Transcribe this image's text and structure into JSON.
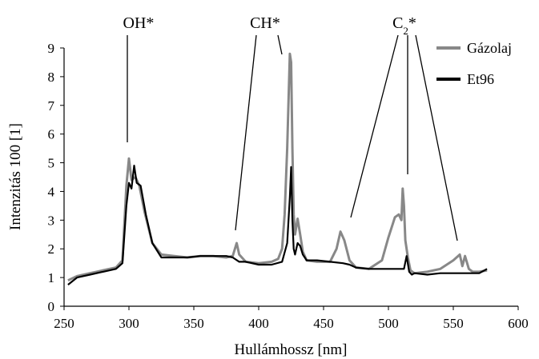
{
  "chart_data": {
    "type": "line",
    "title": "",
    "xlabel": "Hullámhossz [nm]",
    "ylabel": "Intenzitás 100 [1]",
    "xlim": [
      250,
      600
    ],
    "ylim": [
      0,
      9
    ],
    "xticks": [
      250,
      300,
      350,
      400,
      450,
      500,
      550,
      600
    ],
    "yticks": [
      0,
      1,
      2,
      3,
      4,
      5,
      6,
      7,
      8,
      9
    ],
    "grid": false,
    "legend_position": "top-right",
    "annotations": [
      {
        "label": "OH*",
        "sub": "",
        "star": ""
      },
      {
        "label": "CH*",
        "sub": "",
        "star": ""
      },
      {
        "label": "C",
        "sub": "2",
        "star": "*"
      }
    ],
    "series": [
      {
        "name": "Gázolaj",
        "color": "#888888",
        "x": [
          253,
          260,
          270,
          280,
          290,
          295,
          298,
          300,
          302,
          305,
          308,
          312,
          318,
          325,
          335,
          345,
          355,
          365,
          375,
          380,
          383,
          385,
          390,
          400,
          410,
          415,
          418,
          420,
          422,
          423,
          424,
          425,
          426,
          427,
          428,
          430,
          432,
          434,
          437,
          445,
          455,
          460,
          463,
          466,
          470,
          475,
          485,
          495,
          500,
          505,
          508,
          510,
          511,
          512,
          513,
          515,
          517,
          520,
          530,
          540,
          550,
          555,
          557,
          559,
          562,
          565,
          570,
          576
        ],
        "y": [
          0.9,
          1.05,
          1.15,
          1.25,
          1.35,
          1.6,
          4.2,
          5.15,
          4.4,
          4.5,
          4.2,
          3.3,
          2.2,
          1.8,
          1.75,
          1.7,
          1.75,
          1.75,
          1.7,
          1.75,
          2.2,
          1.8,
          1.55,
          1.5,
          1.55,
          1.65,
          2.0,
          3.2,
          5.5,
          7.2,
          8.8,
          8.5,
          5.5,
          3.2,
          2.5,
          3.05,
          2.5,
          1.9,
          1.6,
          1.55,
          1.55,
          2.0,
          2.6,
          2.3,
          1.6,
          1.35,
          1.3,
          1.6,
          2.4,
          3.1,
          3.2,
          3.0,
          4.1,
          3.5,
          2.3,
          1.7,
          1.25,
          1.15,
          1.2,
          1.3,
          1.6,
          1.8,
          1.4,
          1.75,
          1.3,
          1.2,
          1.2,
          1.25
        ]
      },
      {
        "name": "Et96",
        "color": "#000000",
        "x": [
          253,
          260,
          270,
          280,
          290,
          295,
          298,
          300,
          302,
          304,
          306,
          309,
          313,
          318,
          325,
          335,
          345,
          355,
          365,
          375,
          380,
          385,
          390,
          400,
          410,
          418,
          422,
          424,
          425,
          426,
          427,
          428,
          430,
          432,
          434,
          437,
          445,
          455,
          465,
          470,
          475,
          485,
          495,
          505,
          512,
          514,
          516,
          518,
          520,
          530,
          540,
          550,
          560,
          570,
          576
        ],
        "y": [
          0.75,
          1.0,
          1.1,
          1.2,
          1.3,
          1.5,
          3.5,
          4.3,
          4.1,
          4.9,
          4.3,
          4.2,
          3.2,
          2.2,
          1.7,
          1.7,
          1.7,
          1.75,
          1.75,
          1.75,
          1.7,
          1.55,
          1.55,
          1.45,
          1.45,
          1.55,
          2.2,
          3.8,
          4.85,
          3.0,
          2.0,
          1.8,
          2.2,
          2.1,
          1.8,
          1.6,
          1.6,
          1.55,
          1.5,
          1.45,
          1.35,
          1.3,
          1.3,
          1.3,
          1.3,
          1.75,
          1.2,
          1.1,
          1.15,
          1.1,
          1.15,
          1.15,
          1.15,
          1.15,
          1.3
        ]
      }
    ]
  }
}
